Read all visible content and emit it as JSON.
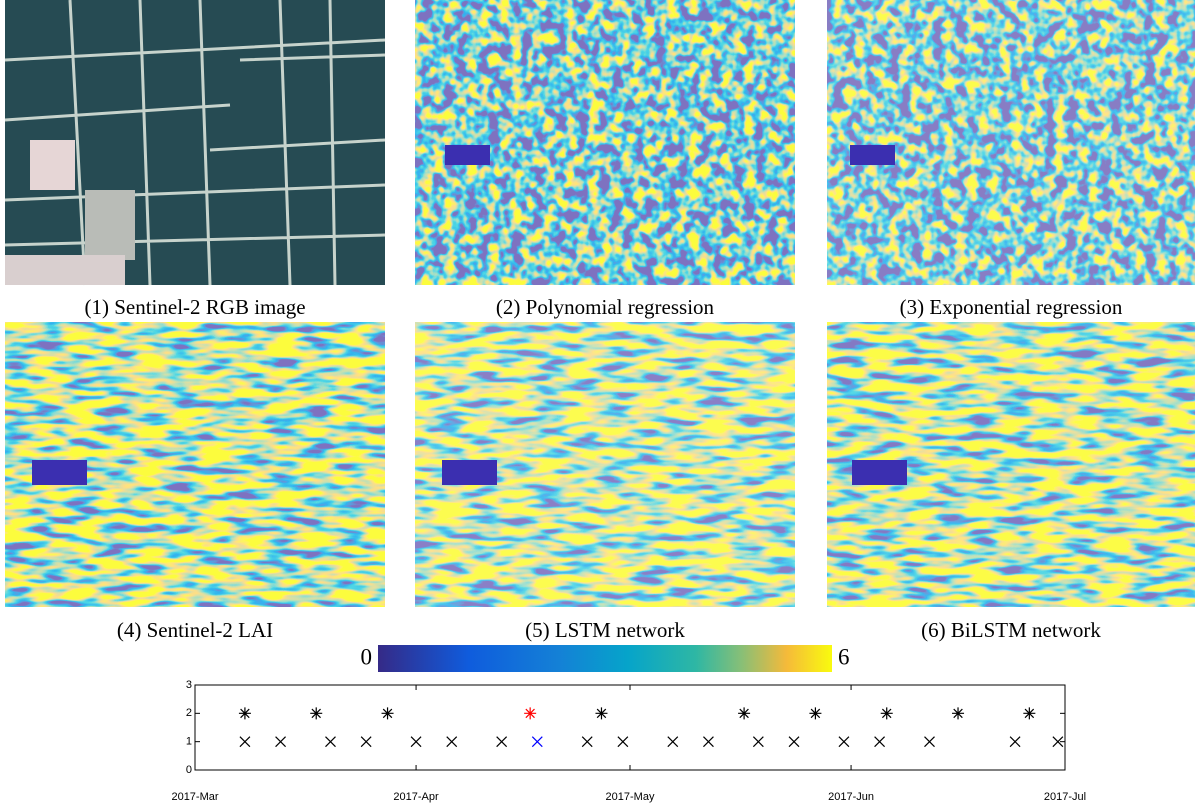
{
  "panels": [
    {
      "caption": "(1) Sentinel-2 RGB image"
    },
    {
      "caption": "(2) Polynomial regression"
    },
    {
      "caption": "(3) Exponential regression"
    },
    {
      "caption": "(4) Sentinel-2 LAI"
    },
    {
      "caption": "(5) LSTM network"
    },
    {
      "caption": "(6) BiLSTM network"
    }
  ],
  "colorbar": {
    "lim": [
      0,
      6
    ],
    "ticks": [
      0,
      6
    ]
  },
  "chart_data": {
    "type": "scatter",
    "xlim": [
      "2017-03-01",
      "2017-07-01"
    ],
    "xticks": [
      {
        "value": "2017-03-01",
        "label": "2017-Mar"
      },
      {
        "value": "2017-04-01",
        "label": "2017-Apr"
      },
      {
        "value": "2017-05-01",
        "label": "2017-May"
      },
      {
        "value": "2017-06-01",
        "label": "2017-Jun"
      },
      {
        "value": "2017-07-01",
        "label": "2017-Jul"
      }
    ],
    "ylim": [
      0,
      3
    ],
    "yticks": [
      0,
      1,
      2,
      3
    ],
    "series": [
      {
        "color": "#000000",
        "marker": "star",
        "x": [
          "2017-03-08",
          "2017-03-18",
          "2017-03-28",
          "2017-04-27",
          "2017-05-17",
          "2017-05-27",
          "2017-06-06",
          "2017-06-16",
          "2017-06-26"
        ],
        "values": [
          2,
          2,
          2,
          2,
          2,
          2,
          2,
          2,
          2
        ]
      },
      {
        "color": "#ff0000",
        "marker": "star",
        "x": [
          "2017-04-17"
        ],
        "values": [
          2
        ]
      },
      {
        "color": "#000000",
        "marker": "x",
        "x": [
          "2017-03-08",
          "2017-03-13",
          "2017-03-20",
          "2017-03-25",
          "2017-04-01",
          "2017-04-06",
          "2017-04-13",
          "2017-04-25",
          "2017-04-30",
          "2017-05-07",
          "2017-05-12",
          "2017-05-19",
          "2017-05-24",
          "2017-05-31",
          "2017-06-05",
          "2017-06-12",
          "2017-06-24",
          "2017-06-30"
        ],
        "values": [
          1,
          1,
          1,
          1,
          1,
          1,
          1,
          1,
          1,
          1,
          1,
          1,
          1,
          1,
          1,
          1,
          1,
          1
        ]
      },
      {
        "color": "#0000ff",
        "marker": "x",
        "x": [
          "2017-04-18"
        ],
        "values": [
          1
        ]
      }
    ]
  }
}
